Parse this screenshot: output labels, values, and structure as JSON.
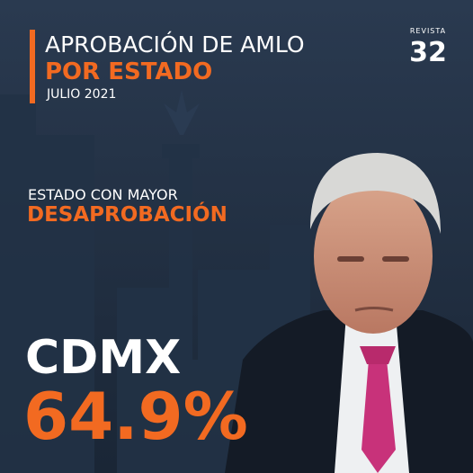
{
  "header": {
    "title": "APROBACIÓN DE AMLO",
    "subtitle": "POR ESTADO",
    "date": "JULIO 2021"
  },
  "brand": {
    "name": "REVISTA",
    "number": "32"
  },
  "highlight": {
    "label": "ESTADO CON MAYOR",
    "metric": "DESAPROBACIÓN",
    "state": "CDMX",
    "value": "64.9%"
  }
}
